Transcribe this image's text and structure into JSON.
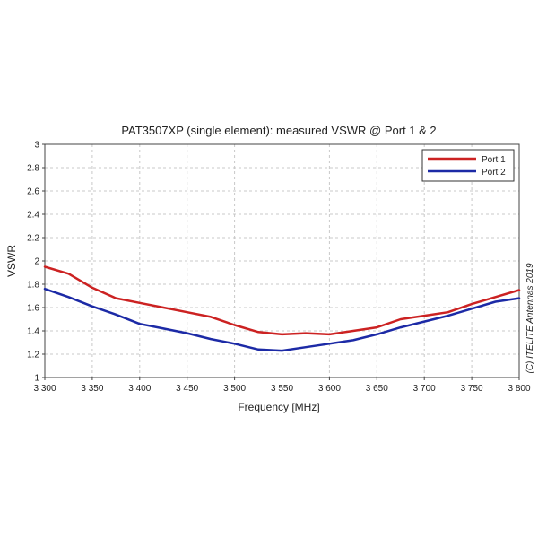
{
  "chart_data": {
    "type": "line",
    "title": "PAT3507XP (single element): measured VSWR @ Port 1 & 2",
    "xlabel": "Frequency [MHz]",
    "ylabel": "VSWR",
    "xlim": [
      3300,
      3800
    ],
    "ylim": [
      1,
      3
    ],
    "x_ticks": [
      3300,
      3350,
      3400,
      3450,
      3500,
      3550,
      3600,
      3650,
      3700,
      3750,
      3800
    ],
    "x_tick_labels": [
      "3 300",
      "3 350",
      "3 400",
      "3 450",
      "3 500",
      "3 550",
      "3 600",
      "3 650",
      "3 700",
      "3 750",
      "3 800"
    ],
    "y_ticks": [
      1,
      1.2,
      1.4,
      1.6,
      1.8,
      2,
      2.2,
      2.4,
      2.6,
      2.8,
      3
    ],
    "y_tick_labels": [
      "1",
      "1.2",
      "1.4",
      "1.6",
      "1.8",
      "2",
      "2.2",
      "2.4",
      "2.6",
      "2.8",
      "3"
    ],
    "grid": true,
    "legend_position": "top-right",
    "annotation": "(C) ITELITE Antennas 2019",
    "series": [
      {
        "name": "Port 1",
        "color": "#cc2222",
        "x": [
          3300,
          3325,
          3350,
          3375,
          3400,
          3425,
          3450,
          3475,
          3500,
          3525,
          3550,
          3575,
          3600,
          3625,
          3650,
          3675,
          3700,
          3725,
          3750,
          3775,
          3800
        ],
        "y": [
          1.95,
          1.89,
          1.77,
          1.68,
          1.64,
          1.6,
          1.56,
          1.52,
          1.45,
          1.39,
          1.37,
          1.38,
          1.37,
          1.4,
          1.43,
          1.5,
          1.53,
          1.56,
          1.63,
          1.69,
          1.75
        ]
      },
      {
        "name": "Port 2",
        "color": "#1c2aa6",
        "x": [
          3300,
          3325,
          3350,
          3375,
          3400,
          3425,
          3450,
          3475,
          3500,
          3525,
          3550,
          3575,
          3600,
          3625,
          3650,
          3675,
          3700,
          3725,
          3750,
          3775,
          3800
        ],
        "y": [
          1.76,
          1.69,
          1.61,
          1.54,
          1.46,
          1.42,
          1.38,
          1.33,
          1.29,
          1.24,
          1.23,
          1.26,
          1.29,
          1.32,
          1.37,
          1.43,
          1.48,
          1.53,
          1.59,
          1.65,
          1.68
        ]
      }
    ]
  }
}
